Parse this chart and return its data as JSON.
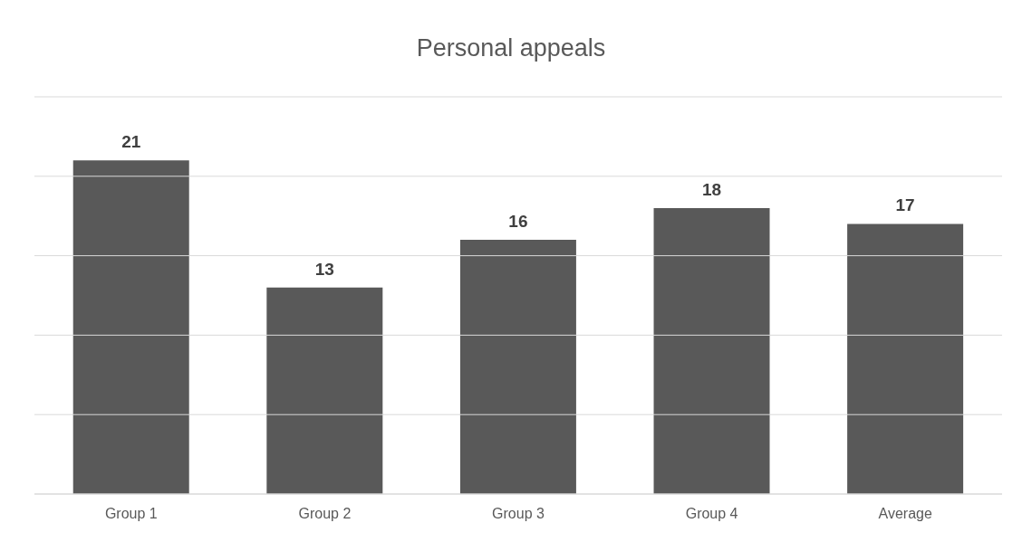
{
  "chart_data": {
    "type": "bar",
    "title": "Personal appeals",
    "categories": [
      "Group 1",
      "Group 2",
      "Group 3",
      "Group 4",
      "Average"
    ],
    "values": [
      21,
      13,
      16,
      18,
      17
    ],
    "color": "#595959",
    "ylim": [
      0,
      25
    ],
    "yticks": [
      {
        "value": 0,
        "label": null
      },
      {
        "value": 5,
        "label": null
      },
      {
        "value": 10,
        "label": null
      },
      {
        "value": 15,
        "label": null
      },
      {
        "value": 20,
        "label": null
      },
      {
        "value": 25,
        "label": null
      }
    ],
    "grid": "y",
    "tick_labels": "x",
    "data_labels": true
  }
}
